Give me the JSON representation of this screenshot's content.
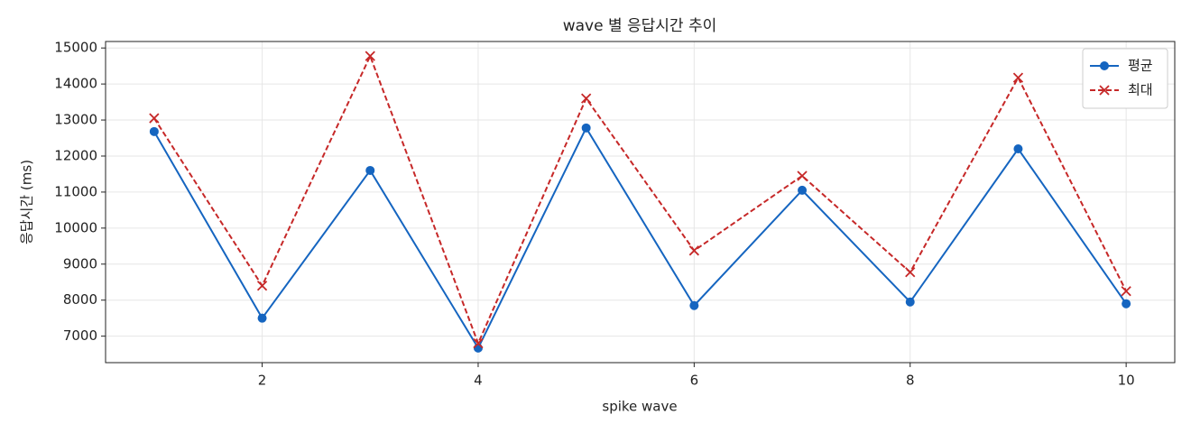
{
  "chart_data": {
    "type": "line",
    "title": "wave 별 응답시간 추이",
    "x_label": "spike wave",
    "y_label": "응답시간 (ms)",
    "x": [
      1,
      2,
      3,
      4,
      5,
      6,
      7,
      8,
      9,
      10
    ],
    "series": [
      {
        "name": "평균",
        "color": "#1565c0",
        "marker": "o",
        "linestyle": "solid",
        "values": [
          12680,
          7500,
          11600,
          6670,
          12780,
          7850,
          11050,
          7950,
          12200,
          7900
        ]
      },
      {
        "name": "최대",
        "color": "#c62828",
        "marker": "x",
        "linestyle": "dashed",
        "values": [
          13050,
          8400,
          14775,
          6800,
          13600,
          9375,
          11450,
          8775,
          14175,
          8250
        ]
      }
    ],
    "xlim": [
      0.55,
      10.45
    ],
    "xticks": [
      2,
      4,
      6,
      8,
      10
    ],
    "ylim": [
      6265,
      15180
    ],
    "yticks": [
      7000,
      8000,
      9000,
      10000,
      11000,
      12000,
      13000,
      14000,
      15000
    ],
    "grid": true,
    "legend": "upper right"
  }
}
